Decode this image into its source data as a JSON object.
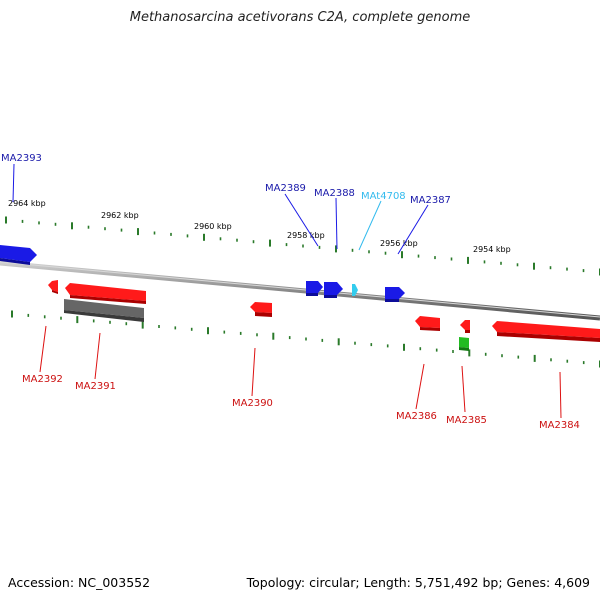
{
  "title": "Methanosarcina acetivorans C2A, complete genome",
  "footer": {
    "accession": "Accession: NC_003552",
    "stats": "Topology: circular; Length: 5,751,492 bp; Genes: 4,609"
  },
  "colors": {
    "backbone": "#8a8a8a",
    "forward_gene": "#1a1ae6",
    "reverse_gene": "#ff1a1a",
    "trna": "#33ccee",
    "pseudo_gene": "#666666",
    "other_gene": "#22bb22",
    "ticks": "#2a7a2a",
    "forward_label": "#1a1aaa",
    "reverse_label": "#cc1111",
    "trna_label": "#33bbee"
  },
  "scale_labels": [
    "2964 kbp",
    "2962 kbp",
    "2960 kbp",
    "2958 kbp",
    "2956 kbp",
    "2954 kbp"
  ],
  "forward_labels": [
    "MA2393",
    "MA2389",
    "MA2388",
    "MAt4708",
    "MA2387"
  ],
  "reverse_labels": [
    "MA2392",
    "MA2391",
    "MA2390",
    "MA2386",
    "MA2385",
    "MA2384"
  ]
}
